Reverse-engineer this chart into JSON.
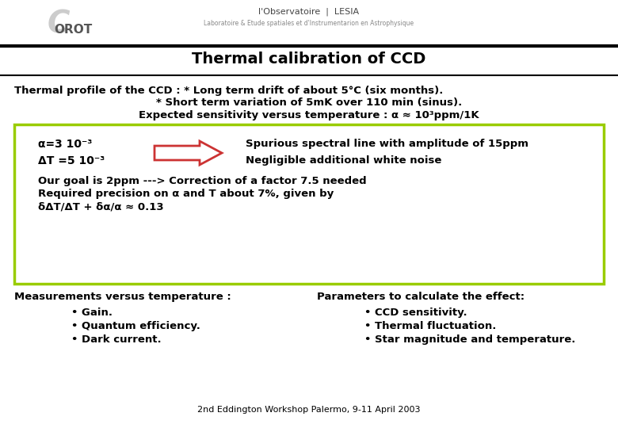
{
  "title": "Thermal calibration of CCD",
  "background_color": "#ffffff",
  "line_color": "#000000",
  "box_border_color": "#99cc00",
  "arrow_color": "#cc3333",
  "text_color": "#000000",
  "line1": "Thermal profile of the CCD : * Long term drift of about 5°C (six months).",
  "line2": "* Short term variation of 5mK over 110 min (sinus).",
  "line3": "Expected sensitivity versus temperature : α ≈ 10³ppm/1K",
  "box_alpha_line": "α=3 10⁻³",
  "box_dt_line": "ΔT =5 10⁻³",
  "box_spurious": "Spurious spectral line with amplitude of 15ppm",
  "box_negligible": "Negligible additional white noise",
  "box_goal": "Our goal is 2ppm ---> Correction of a factor 7.5 needed",
  "box_required": "Required precision on α and T about 7%, given by",
  "box_formula": "δΔT/ΔT + δα/α ≈ 0.13",
  "meas_title": "Measurements versus temperature :",
  "meas_items": [
    "• Gain.",
    "• Quantum efficiency.",
    "• Dark current."
  ],
  "param_title": "Parameters to calculate the effect:",
  "param_items": [
    "• CCD sensitivity.",
    "• Thermal fluctuation.",
    "• Star magnitude and temperature."
  ],
  "footer": "2nd Eddington Workshop Palermo, 9-11 April 2003"
}
